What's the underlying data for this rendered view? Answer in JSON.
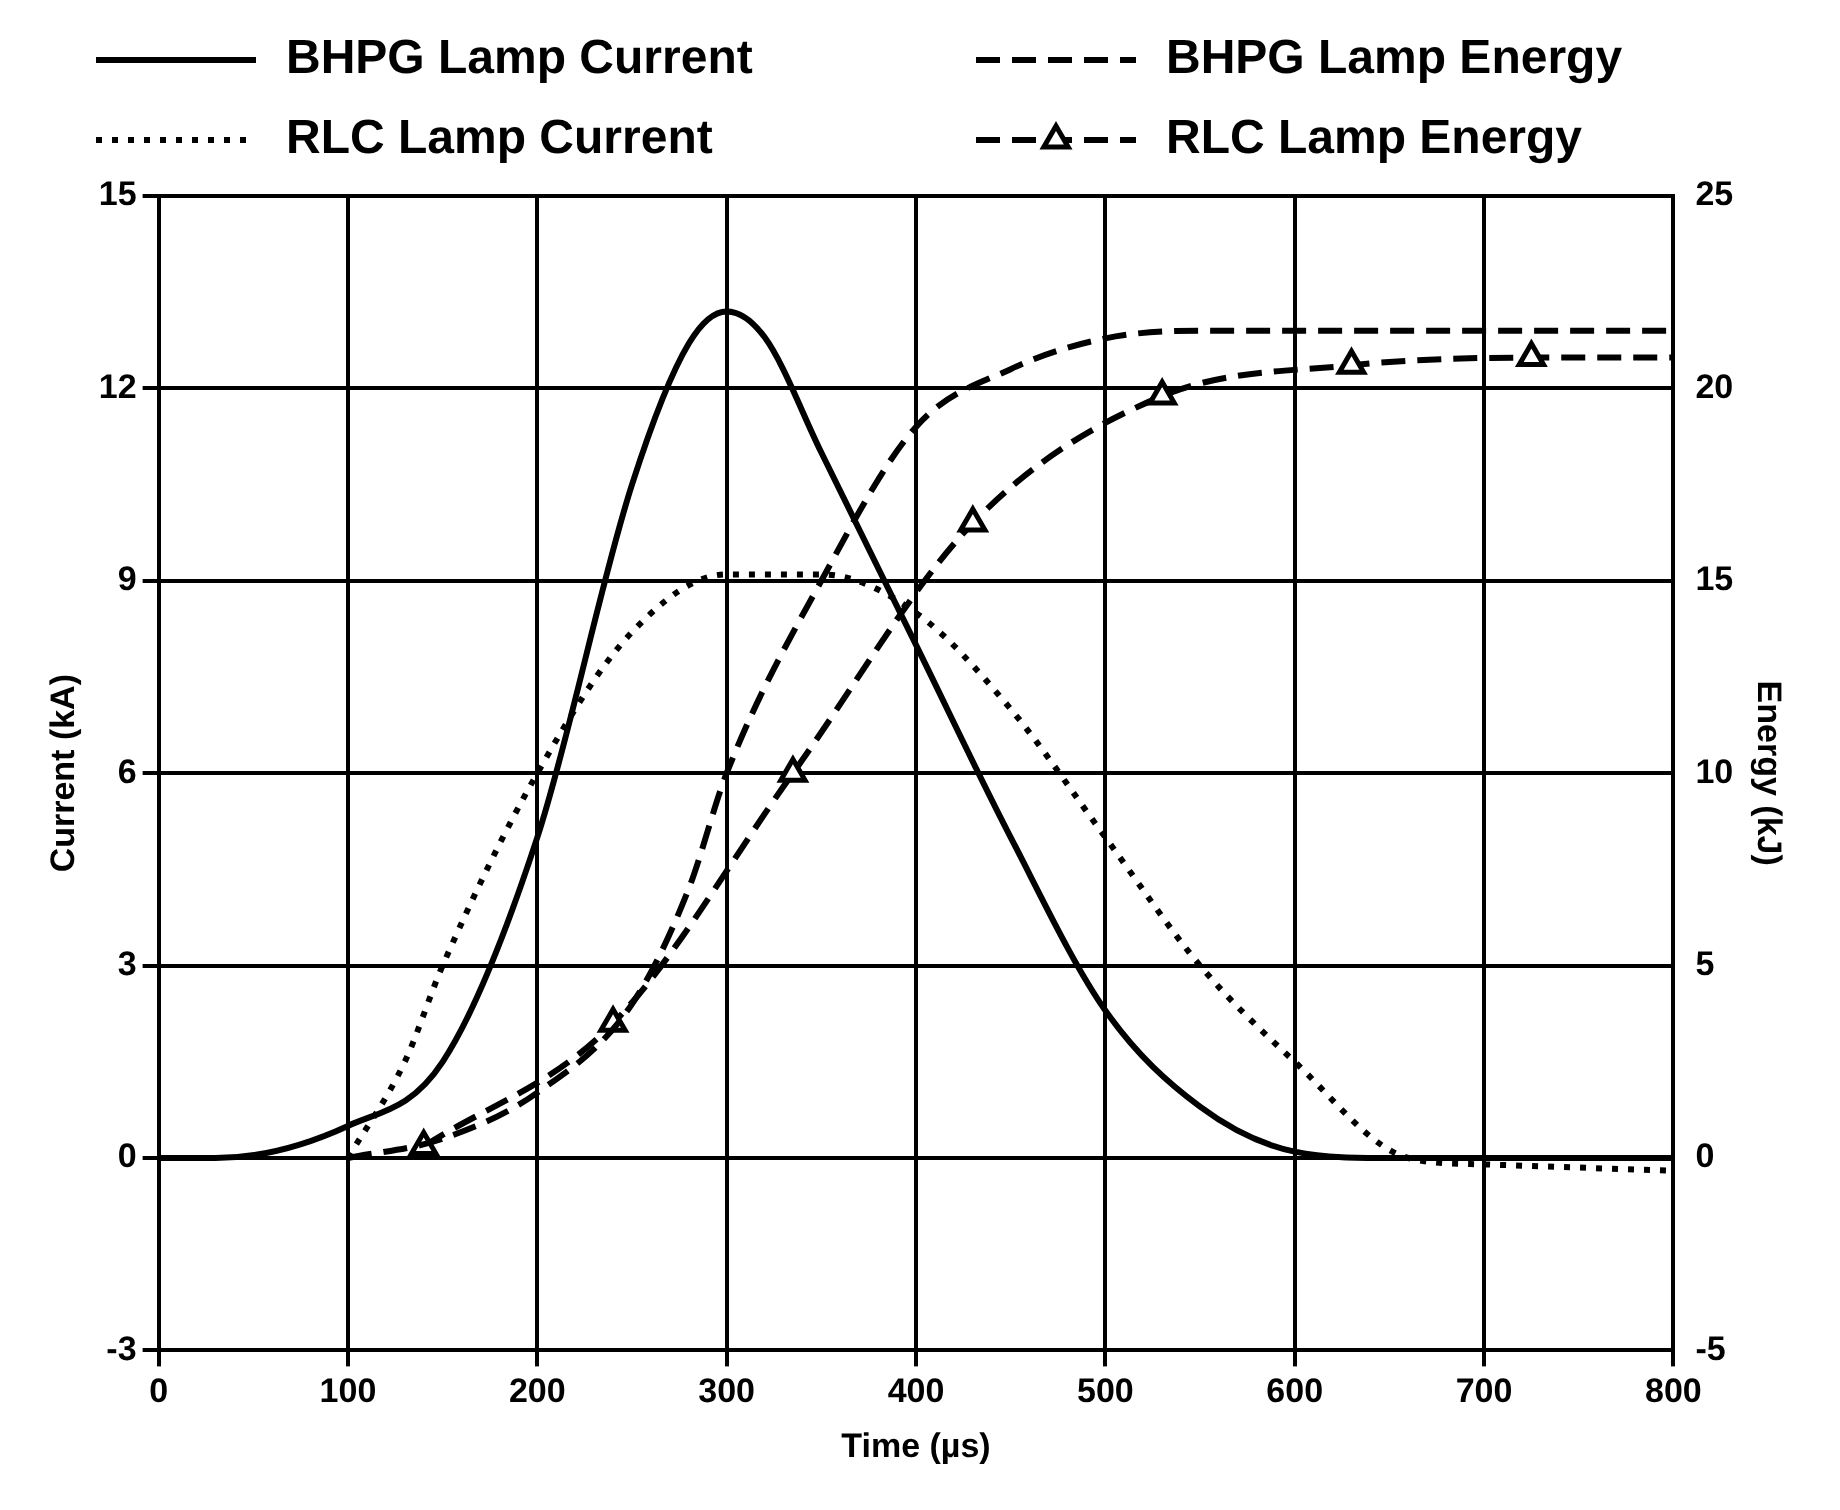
{
  "chart_data": {
    "type": "line",
    "xlabel": "Time (µs)",
    "ylabel": "Current (kA)",
    "y2label": "Energy (kJ)",
    "xlim": [
      0,
      800
    ],
    "xticks": [
      0,
      100,
      200,
      300,
      400,
      500,
      600,
      700,
      800
    ],
    "ylim": [
      -3,
      15
    ],
    "yticks": [
      -3,
      0,
      3,
      6,
      9,
      12,
      15
    ],
    "y2lim": [
      -5,
      25
    ],
    "y2ticks": [
      -5,
      0,
      5,
      10,
      15,
      20,
      25
    ],
    "grid": true,
    "legend": "top",
    "marker": "none",
    "series": [
      {
        "name": "BHPG Lamp Current",
        "color": "#000000",
        "line_style": "solid",
        "x": [
          0,
          30,
          100,
          150,
          200,
          250,
          280,
          300,
          320,
          350,
          400,
          450,
          500,
          550,
          600,
          650,
          800
        ],
        "values": [
          0,
          0,
          0.5,
          1.5,
          5,
          10.5,
          12.7,
          13.2,
          12.8,
          11,
          8,
          5,
          2.3,
          0.8,
          0.1,
          0,
          0
        ]
      },
      {
        "name": "BHPG Lamp Energy",
        "color": "#000000",
        "line_style": "dashed",
        "axis": "y2",
        "x": [
          100,
          150,
          200,
          250,
          280,
          300,
          350,
          400,
          450,
          500,
          550,
          800
        ],
        "values": [
          0,
          0.5,
          1.7,
          4,
          7,
          10,
          15,
          19,
          20.5,
          21.3,
          21.5,
          21.5
        ]
      },
      {
        "name": "RLC Lamp Current",
        "color": "#000000",
        "line_style": "dotted",
        "x": [
          100,
          130,
          150,
          200,
          250,
          300,
          350,
          400,
          450,
          500,
          550,
          600,
          660,
          700,
          800
        ],
        "values": [
          0,
          1.5,
          3,
          6,
          8.2,
          9.1,
          9.1,
          8.5,
          7,
          5,
          3,
          1.5,
          0,
          -0.1,
          -0.2
        ]
      },
      {
        "name": "RLC Lamp Energy",
        "color": "#000000",
        "line_style": "dashed",
        "marker": "triangle",
        "axis": "y2",
        "x": [
          140,
          240,
          335,
          430,
          530,
          630,
          725,
          800
        ],
        "values": [
          0.3,
          3.5,
          10,
          16.5,
          19.8,
          20.6,
          20.8,
          20.8
        ]
      }
    ]
  }
}
